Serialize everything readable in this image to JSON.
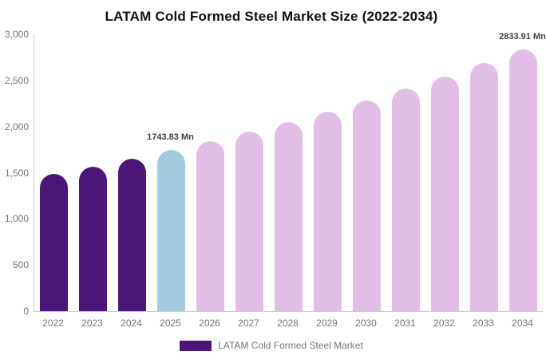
{
  "chart_data": {
    "type": "bar",
    "title": "LATAM Cold Formed Steel Market Size (2022-2034)",
    "xlabel": "",
    "ylabel": "",
    "unit": "Mn",
    "categories": [
      "2022",
      "2023",
      "2024",
      "2025",
      "2026",
      "2027",
      "2028",
      "2029",
      "2030",
      "2031",
      "2032",
      "2033",
      "2034"
    ],
    "values": [
      1483,
      1565,
      1652,
      1743.83,
      1841,
      1943,
      2050,
      2164,
      2284,
      2410,
      2544,
      2685,
      2833.91
    ],
    "bar_colors": [
      "#4B1678",
      "#4B1678",
      "#4B1678",
      "#A4CBE0",
      "#E2BEE7",
      "#E2BEE7",
      "#E2BEE7",
      "#E2BEE7",
      "#E2BEE7",
      "#E2BEE7",
      "#E2BEE7",
      "#E2BEE7",
      "#E2BEE7"
    ],
    "colors": {
      "historical": "#4B1678",
      "base_year": "#A4CBE0",
      "forecast": "#E2BEE7",
      "axis_line": "#cccccc",
      "tick_text": "#757575",
      "data_label_text": "#404040",
      "title_text": "#111111"
    },
    "ylim": [
      0,
      3000
    ],
    "yticks": [
      {
        "value": 0,
        "label": "0"
      },
      {
        "value": 500,
        "label": "500"
      },
      {
        "value": 1000,
        "label": "1,000"
      },
      {
        "value": 1500,
        "label": "1,500"
      },
      {
        "value": 2000,
        "label": "2,000"
      },
      {
        "value": 2500,
        "label": "2,500"
      },
      {
        "value": 3000,
        "label": "3,000"
      }
    ],
    "grid": false,
    "data_labels": [
      {
        "category": "2025",
        "index": 3,
        "text": "1743.83 Mn"
      },
      {
        "category": "2034",
        "index": 12,
        "text": "2833.91 Mn"
      }
    ],
    "legend": {
      "position": "bottom",
      "entries": [
        {
          "label": "LATAM Cold Formed Steel Market",
          "color": "#4B1678"
        }
      ]
    }
  }
}
